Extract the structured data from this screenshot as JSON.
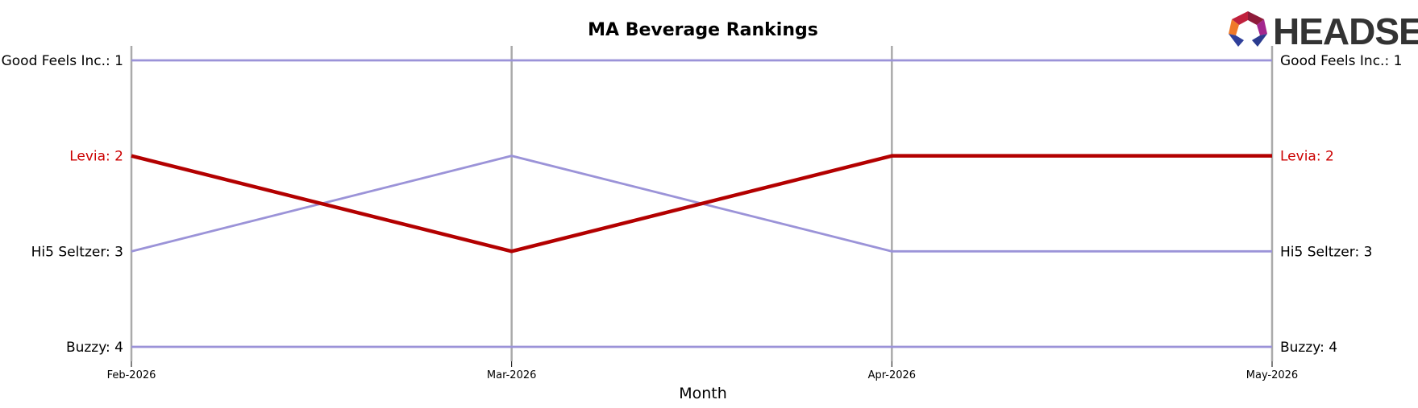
{
  "logo": {
    "text": "HEADSET"
  },
  "chart_data": {
    "type": "line",
    "title": "MA Beverage Rankings",
    "xlabel": "Month",
    "ylabel": "",
    "x": [
      "Feb-2026",
      "Mar-2026",
      "Apr-2026",
      "May-2026"
    ],
    "y_inverted": true,
    "ylim": [
      1,
      4
    ],
    "grid": "vertical lines at each month",
    "series": [
      {
        "name": "Good Feels Inc.",
        "values": [
          1,
          1,
          1,
          1
        ],
        "left_label": "Good Feels Inc.: 1",
        "right_label": "Good Feels Inc.: 1",
        "color": "#9b93d8",
        "highlight": false
      },
      {
        "name": "Levia",
        "values": [
          2,
          3,
          2,
          2
        ],
        "left_label": "Levia: 2",
        "right_label": "Levia: 2",
        "color": "#b30000",
        "highlight": true
      },
      {
        "name": "Hi5 Seltzer",
        "values": [
          3,
          2,
          3,
          3
        ],
        "left_label": "Hi5 Seltzer: 3",
        "right_label": "Hi5 Seltzer: 3",
        "color": "#9b93d8",
        "highlight": false
      },
      {
        "name": "Buzzy",
        "values": [
          4,
          4,
          4,
          4
        ],
        "left_label": "Buzzy: 4",
        "right_label": "Buzzy: 4",
        "color": "#9b93d8",
        "highlight": false
      }
    ],
    "colors": {
      "highlight": "#b30000",
      "other": "#9b93d8",
      "gridline": "#aaaaaa",
      "label_default": "#000000",
      "label_highlight": "#cc0000"
    }
  }
}
